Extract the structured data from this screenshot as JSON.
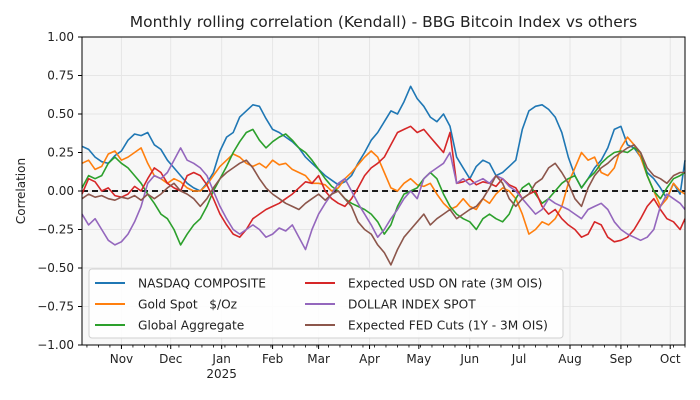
{
  "chart_data": {
    "type": "line",
    "title": "Monthly rolling correlation (Kendall) - BBG Bitcoin Index vs others",
    "xlabel": "",
    "ylabel": "Correlation",
    "ylim": [
      -1.0,
      1.0
    ],
    "yticks": [
      "1.00",
      "0.75",
      "0.50",
      "0.25",
      "0.00",
      "−0.25",
      "−0.50",
      "−0.75",
      "−1.00"
    ],
    "ytick_values": [
      1.0,
      0.75,
      0.5,
      0.25,
      0.0,
      -0.25,
      -0.5,
      -0.75,
      -1.0
    ],
    "x_start": "2024-10-08",
    "x_end": "2025-10-10",
    "xticks": [
      {
        "date": "2024-11-01",
        "label": "Nov",
        "sublabel": ""
      },
      {
        "date": "2024-12-01",
        "label": "Dec",
        "sublabel": ""
      },
      {
        "date": "2025-01-01",
        "label": "Jan",
        "sublabel": "2025"
      },
      {
        "date": "2025-02-01",
        "label": "Feb",
        "sublabel": ""
      },
      {
        "date": "2025-03-01",
        "label": "Mar",
        "sublabel": ""
      },
      {
        "date": "2025-04-01",
        "label": "Apr",
        "sublabel": ""
      },
      {
        "date": "2025-05-01",
        "label": "May",
        "sublabel": ""
      },
      {
        "date": "2025-06-01",
        "label": "Jun",
        "sublabel": ""
      },
      {
        "date": "2025-07-01",
        "label": "Jul",
        "sublabel": ""
      },
      {
        "date": "2025-08-01",
        "label": "Aug",
        "sublabel": ""
      },
      {
        "date": "2025-09-01",
        "label": "Sep",
        "sublabel": ""
      },
      {
        "date": "2025-10-01",
        "label": "Oct",
        "sublabel": ""
      }
    ],
    "grid": true,
    "reference_line": {
      "y": 0.0,
      "style": "dashed",
      "color": "#000000"
    },
    "legend": {
      "placement": "lower-left",
      "columns": 2
    },
    "x_days": [
      0,
      4,
      8,
      12,
      16,
      20,
      24,
      28,
      32,
      36,
      40,
      44,
      48,
      52,
      56,
      60,
      64,
      68,
      72,
      76,
      80,
      84,
      88,
      92,
      96,
      100,
      104,
      108,
      112,
      116,
      120,
      124,
      128,
      132,
      136,
      140,
      144,
      148,
      152,
      156,
      160,
      164,
      168,
      172,
      176,
      180,
      184,
      188,
      192,
      196,
      200,
      204,
      208,
      212,
      216,
      220,
      224,
      228,
      232,
      236,
      240,
      244,
      248,
      252,
      256,
      260,
      264,
      268,
      272,
      276,
      280,
      284,
      288,
      292,
      296,
      300,
      304,
      308,
      312,
      316,
      320,
      324,
      328,
      332,
      336,
      340,
      344,
      348,
      352,
      356,
      360,
      364,
      367
    ],
    "series": [
      {
        "name": "NASDAQ COMPOSITE",
        "color": "#1f77b4",
        "values": [
          0.29,
          0.27,
          0.22,
          0.19,
          0.18,
          0.23,
          0.26,
          0.33,
          0.37,
          0.36,
          0.38,
          0.3,
          0.27,
          0.2,
          0.15,
          0.1,
          0.05,
          0.02,
          0.0,
          0.05,
          0.12,
          0.26,
          0.35,
          0.38,
          0.48,
          0.52,
          0.56,
          0.55,
          0.47,
          0.4,
          0.38,
          0.35,
          0.32,
          0.28,
          0.22,
          0.18,
          0.14,
          0.1,
          0.07,
          0.04,
          0.06,
          0.1,
          0.18,
          0.25,
          0.33,
          0.38,
          0.45,
          0.52,
          0.5,
          0.58,
          0.68,
          0.6,
          0.55,
          0.48,
          0.45,
          0.5,
          0.42,
          0.22,
          0.15,
          0.08,
          0.16,
          0.2,
          0.18,
          0.1,
          0.12,
          0.16,
          0.2,
          0.4,
          0.52,
          0.55,
          0.56,
          0.53,
          0.48,
          0.38,
          0.22,
          0.1,
          0.02,
          0.08,
          0.15,
          0.2,
          0.28,
          0.4,
          0.42,
          0.3,
          0.28,
          0.22,
          0.12,
          0.08,
          0.02,
          -0.05,
          0.05,
          -0.02,
          0.2
        ]
      },
      {
        "name": "Gold Spot   $/Oz",
        "color": "#ff7f0e",
        "values": [
          0.18,
          0.2,
          0.14,
          0.16,
          0.24,
          0.26,
          0.2,
          0.22,
          0.25,
          0.28,
          0.18,
          0.1,
          0.08,
          0.05,
          0.08,
          0.06,
          0.02,
          0.0,
          0.0,
          0.04,
          0.1,
          0.16,
          0.2,
          0.24,
          0.22,
          0.18,
          0.16,
          0.18,
          0.15,
          0.2,
          0.17,
          0.18,
          0.14,
          0.12,
          0.1,
          0.05,
          0.05,
          0.04,
          0.0,
          0.02,
          0.08,
          0.12,
          0.17,
          0.22,
          0.26,
          0.22,
          0.12,
          0.02,
          0.0,
          0.05,
          0.08,
          0.04,
          0.03,
          0.05,
          -0.02,
          -0.08,
          -0.12,
          -0.1,
          -0.05,
          -0.1,
          -0.12,
          -0.05,
          -0.08,
          -0.02,
          0.02,
          0.0,
          -0.05,
          -0.15,
          -0.28,
          -0.25,
          -0.2,
          -0.22,
          -0.18,
          -0.1,
          0.05,
          0.15,
          0.25,
          0.2,
          0.22,
          0.12,
          0.1,
          0.15,
          0.28,
          0.35,
          0.3,
          0.22,
          0.1,
          0.0,
          -0.1,
          -0.05,
          0.05,
          0.0,
          -0.02
        ]
      },
      {
        "name": "Global Aggregate",
        "color": "#2ca02c",
        "values": [
          0.02,
          0.1,
          0.08,
          0.1,
          0.18,
          0.22,
          0.18,
          0.15,
          0.1,
          0.05,
          -0.02,
          -0.08,
          -0.15,
          -0.18,
          -0.25,
          -0.35,
          -0.28,
          -0.22,
          -0.18,
          -0.1,
          0.0,
          0.08,
          0.16,
          0.25,
          0.32,
          0.38,
          0.4,
          0.33,
          0.28,
          0.32,
          0.35,
          0.37,
          0.33,
          0.28,
          0.25,
          0.2,
          0.14,
          0.08,
          0.03,
          0.0,
          -0.05,
          -0.08,
          -0.1,
          -0.12,
          -0.15,
          -0.2,
          -0.28,
          -0.22,
          -0.1,
          -0.02,
          0.0,
          0.02,
          0.08,
          0.12,
          0.08,
          -0.02,
          -0.1,
          -0.15,
          -0.18,
          -0.2,
          -0.25,
          -0.18,
          -0.15,
          -0.18,
          -0.2,
          -0.15,
          -0.05,
          0.02,
          0.05,
          -0.02,
          -0.08,
          -0.05,
          0.0,
          0.05,
          0.08,
          0.1,
          0.02,
          0.08,
          0.12,
          0.18,
          0.22,
          0.25,
          0.26,
          0.25,
          0.28,
          0.25,
          0.1,
          0.0,
          -0.05,
          0.02,
          0.08,
          0.1,
          0.12
        ]
      },
      {
        "name": "Expected USD ON rate (3M OIS)",
        "color": "#d62728",
        "values": [
          -0.02,
          0.08,
          0.06,
          0.0,
          0.02,
          -0.03,
          -0.04,
          -0.02,
          0.03,
          0.0,
          0.08,
          0.15,
          0.12,
          0.05,
          0.02,
          0.0,
          0.1,
          0.12,
          0.1,
          0.04,
          -0.05,
          -0.15,
          -0.22,
          -0.28,
          -0.3,
          -0.25,
          -0.18,
          -0.15,
          -0.12,
          -0.1,
          -0.08,
          -0.05,
          -0.02,
          0.02,
          0.06,
          0.05,
          0.1,
          0.0,
          -0.05,
          -0.08,
          -0.1,
          -0.05,
          0.02,
          0.1,
          0.15,
          0.18,
          0.22,
          0.3,
          0.38,
          0.4,
          0.42,
          0.38,
          0.4,
          0.35,
          0.3,
          0.25,
          0.38,
          0.05,
          0.06,
          0.08,
          0.04,
          0.06,
          0.05,
          0.03,
          0.08,
          0.04,
          0.02,
          -0.05,
          -0.02,
          0.0,
          -0.1,
          -0.15,
          -0.12,
          -0.18,
          -0.22,
          -0.25,
          -0.3,
          -0.28,
          -0.2,
          -0.22,
          -0.3,
          -0.33,
          -0.32,
          -0.3,
          -0.25,
          -0.18,
          -0.1,
          -0.05,
          -0.12,
          -0.18,
          -0.2,
          -0.25,
          -0.18
        ]
      },
      {
        "name": "DOLLAR INDEX SPOT",
        "color": "#9467bd",
        "values": [
          -0.15,
          -0.22,
          -0.18,
          -0.25,
          -0.32,
          -0.35,
          -0.33,
          -0.28,
          -0.2,
          -0.1,
          0.05,
          0.1,
          0.08,
          0.12,
          0.2,
          0.28,
          0.2,
          0.18,
          0.15,
          0.1,
          0.0,
          -0.1,
          -0.18,
          -0.25,
          -0.28,
          -0.25,
          -0.22,
          -0.25,
          -0.3,
          -0.28,
          -0.24,
          -0.26,
          -0.22,
          -0.3,
          -0.38,
          -0.25,
          -0.15,
          -0.08,
          -0.02,
          0.05,
          0.08,
          0.0,
          -0.08,
          -0.15,
          -0.22,
          -0.3,
          -0.25,
          -0.18,
          -0.12,
          -0.05,
          0.0,
          -0.05,
          0.08,
          0.12,
          0.15,
          0.18,
          0.25,
          0.05,
          0.08,
          0.04,
          0.06,
          0.08,
          0.05,
          0.1,
          0.08,
          0.03,
          0.0,
          -0.05,
          -0.1,
          -0.15,
          -0.12,
          -0.05,
          -0.08,
          -0.1,
          -0.12,
          -0.15,
          -0.18,
          -0.12,
          -0.1,
          -0.08,
          -0.12,
          -0.2,
          -0.25,
          -0.28,
          -0.3,
          -0.32,
          -0.3,
          -0.25,
          -0.1,
          -0.02,
          -0.05,
          -0.08,
          -0.12
        ]
      },
      {
        "name": "Expected FED Cuts (1Y - 3M OIS)",
        "color": "#8c564b",
        "values": [
          -0.05,
          -0.02,
          -0.04,
          -0.03,
          -0.05,
          -0.06,
          -0.04,
          -0.05,
          -0.03,
          -0.06,
          -0.02,
          -0.05,
          -0.02,
          0.02,
          0.05,
          0.0,
          -0.02,
          -0.05,
          -0.1,
          -0.05,
          0.02,
          0.08,
          0.12,
          0.15,
          0.18,
          0.2,
          0.15,
          0.08,
          0.02,
          -0.02,
          -0.05,
          -0.08,
          -0.1,
          -0.12,
          -0.08,
          -0.05,
          -0.02,
          -0.06,
          -0.02,
          0.0,
          -0.05,
          -0.1,
          -0.2,
          -0.25,
          -0.28,
          -0.35,
          -0.4,
          -0.48,
          -0.38,
          -0.3,
          -0.25,
          -0.2,
          -0.15,
          -0.22,
          -0.18,
          -0.15,
          -0.12,
          -0.18,
          -0.15,
          -0.12,
          -0.1,
          -0.05,
          0.02,
          0.1,
          0.05,
          -0.05,
          -0.1,
          -0.05,
          -0.02,
          0.05,
          0.08,
          0.15,
          0.18,
          0.12,
          0.05,
          -0.05,
          -0.1,
          0.02,
          0.1,
          0.15,
          0.18,
          0.22,
          0.25,
          0.28,
          0.3,
          0.25,
          0.15,
          0.1,
          0.08,
          0.05,
          0.1,
          0.12,
          0.12
        ]
      }
    ]
  }
}
